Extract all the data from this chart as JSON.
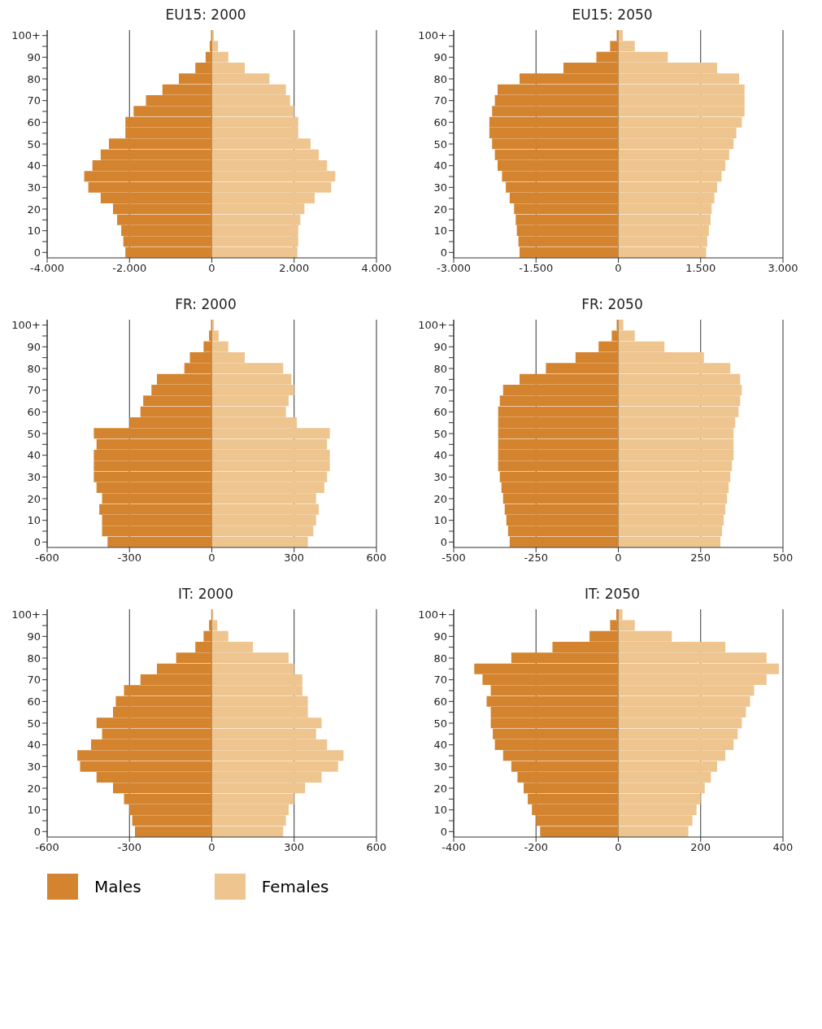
{
  "chart_data": [
    {
      "type": "bar",
      "orientation": "horizontal",
      "stacked": true,
      "title": "EU15: 2000",
      "categories": [
        "100+",
        null,
        "90",
        null,
        "80",
        null,
        "70",
        null,
        "60",
        null,
        "50",
        null,
        "40",
        null,
        "30",
        null,
        "20",
        null,
        "10",
        null,
        "0"
      ],
      "xlim": [
        -4000,
        4000
      ],
      "xticks": [
        {
          "value": -4000,
          "label": "-4.000"
        },
        {
          "value": -2000,
          "label": "-2.000"
        },
        0,
        {
          "value": 2000,
          "label": "2.000"
        },
        {
          "value": 4000,
          "label": "4.000"
        }
      ],
      "grid": "x",
      "series": [
        {
          "color": "#d4842f",
          "values": [
            -20,
            -50,
            -150,
            -400,
            -800,
            -1200,
            -1600,
            -1900,
            -2100,
            -2100,
            -2500,
            -2700,
            -2900,
            -3100,
            -3000,
            -2700,
            -2400,
            -2300,
            -2200,
            -2150,
            -2100
          ]
        },
        {
          "color": "#eec48f",
          "values": [
            50,
            150,
            400,
            800,
            1400,
            1800,
            1900,
            2000,
            2100,
            2100,
            2400,
            2600,
            2800,
            3000,
            2900,
            2500,
            2250,
            2150,
            2100,
            2100,
            2080
          ]
        }
      ]
    },
    {
      "type": "bar",
      "orientation": "horizontal",
      "stacked": true,
      "title": "EU15: 2050",
      "categories": [
        "100+",
        null,
        "90",
        null,
        "80",
        null,
        "70",
        null,
        "60",
        null,
        "50",
        null,
        "40",
        null,
        "30",
        null,
        "20",
        null,
        "10",
        null,
        "0"
      ],
      "xlim": [
        -3000,
        3000
      ],
      "xticks": [
        {
          "value": -3000,
          "label": "-3.000"
        },
        {
          "value": -1500,
          "label": "-1.500"
        },
        0,
        {
          "value": 1500,
          "label": "1.500"
        },
        {
          "value": 3000,
          "label": "3.000"
        }
      ],
      "grid": "x",
      "series": [
        {
          "color": "#d4842f",
          "values": [
            -30,
            -150,
            -400,
            -1000,
            -1800,
            -2200,
            -2250,
            -2300,
            -2350,
            -2350,
            -2300,
            -2250,
            -2200,
            -2120,
            -2050,
            -1980,
            -1900,
            -1870,
            -1850,
            -1820,
            -1800
          ]
        },
        {
          "color": "#eec48f",
          "values": [
            80,
            300,
            900,
            1800,
            2200,
            2300,
            2300,
            2300,
            2250,
            2150,
            2100,
            2020,
            1950,
            1880,
            1800,
            1750,
            1700,
            1680,
            1650,
            1620,
            1600
          ]
        }
      ]
    },
    {
      "type": "bar",
      "orientation": "horizontal",
      "stacked": true,
      "title": "FR: 2000",
      "categories": [
        "100+",
        null,
        "90",
        null,
        "80",
        null,
        "70",
        null,
        "60",
        null,
        "50",
        null,
        "40",
        null,
        "30",
        null,
        "20",
        null,
        "10",
        null,
        "0"
      ],
      "xlim": [
        -600,
        600
      ],
      "xticks": [
        -600,
        -300,
        0,
        300,
        600
      ],
      "grid": "x",
      "series": [
        {
          "color": "#d4842f",
          "values": [
            -3,
            -10,
            -30,
            -80,
            -100,
            -200,
            -220,
            -250,
            -260,
            -300,
            -430,
            -420,
            -430,
            -430,
            -430,
            -420,
            -400,
            -410,
            -400,
            -400,
            -380
          ]
        },
        {
          "color": "#eec48f",
          "values": [
            8,
            25,
            60,
            120,
            260,
            290,
            300,
            280,
            270,
            310,
            430,
            420,
            430,
            430,
            420,
            410,
            380,
            390,
            380,
            370,
            350
          ]
        }
      ]
    },
    {
      "type": "bar",
      "orientation": "horizontal",
      "stacked": true,
      "title": "FR: 2050",
      "categories": [
        "100+",
        null,
        "90",
        null,
        "80",
        null,
        "70",
        null,
        "60",
        null,
        "50",
        null,
        "40",
        null,
        "30",
        null,
        "20",
        null,
        "10",
        null,
        "0"
      ],
      "xlim": [
        -500,
        500
      ],
      "xticks": [
        -500,
        -250,
        0,
        250,
        500
      ],
      "grid": "x",
      "series": [
        {
          "color": "#d4842f",
          "values": [
            -5,
            -20,
            -60,
            -130,
            -220,
            -300,
            -350,
            -360,
            -365,
            -365,
            -365,
            -365,
            -365,
            -365,
            -360,
            -355,
            -350,
            -345,
            -340,
            -335,
            -330
          ]
        },
        {
          "color": "#eec48f",
          "values": [
            15,
            50,
            140,
            260,
            340,
            370,
            375,
            370,
            365,
            355,
            350,
            350,
            350,
            345,
            340,
            335,
            330,
            325,
            320,
            315,
            310
          ]
        }
      ]
    },
    {
      "type": "bar",
      "orientation": "horizontal",
      "stacked": true,
      "title": "IT: 2000",
      "categories": [
        "100+",
        null,
        "90",
        null,
        "80",
        null,
        "70",
        null,
        "60",
        null,
        "50",
        null,
        "40",
        null,
        "30",
        null,
        "20",
        null,
        "10",
        null,
        "0"
      ],
      "xlim": [
        -600,
        600
      ],
      "xticks": [
        -600,
        -300,
        0,
        300,
        600
      ],
      "grid": "x",
      "legend": "bottom",
      "series": [
        {
          "name": "Males",
          "color": "#d4842f",
          "values": [
            -2,
            -10,
            -30,
            -60,
            -130,
            -200,
            -260,
            -320,
            -350,
            -360,
            -420,
            -400,
            -440,
            -490,
            -480,
            -420,
            -360,
            -320,
            -300,
            -290,
            -280
          ]
        },
        {
          "name": "Females",
          "color": "#eec48f",
          "values": [
            5,
            20,
            60,
            150,
            280,
            300,
            330,
            330,
            350,
            350,
            400,
            380,
            420,
            480,
            460,
            400,
            340,
            300,
            280,
            270,
            260
          ]
        }
      ]
    },
    {
      "type": "bar",
      "orientation": "horizontal",
      "stacked": true,
      "title": "IT: 2050",
      "categories": [
        "100+",
        null,
        "90",
        null,
        "80",
        null,
        "70",
        null,
        "60",
        null,
        "50",
        null,
        "40",
        null,
        "30",
        null,
        "20",
        null,
        "10",
        null,
        "0"
      ],
      "xlim": [
        -400,
        400
      ],
      "xticks": [
        -400,
        -200,
        0,
        200,
        400
      ],
      "grid": "x",
      "series": [
        {
          "color": "#d4842f",
          "values": [
            -5,
            -20,
            -70,
            -160,
            -260,
            -350,
            -330,
            -310,
            -320,
            -310,
            -310,
            -305,
            -300,
            -280,
            -260,
            -245,
            -230,
            -220,
            -210,
            -200,
            -190
          ]
        },
        {
          "color": "#eec48f",
          "values": [
            10,
            40,
            130,
            260,
            360,
            390,
            360,
            330,
            320,
            310,
            300,
            290,
            280,
            260,
            240,
            225,
            210,
            200,
            190,
            180,
            170
          ]
        }
      ]
    }
  ]
}
